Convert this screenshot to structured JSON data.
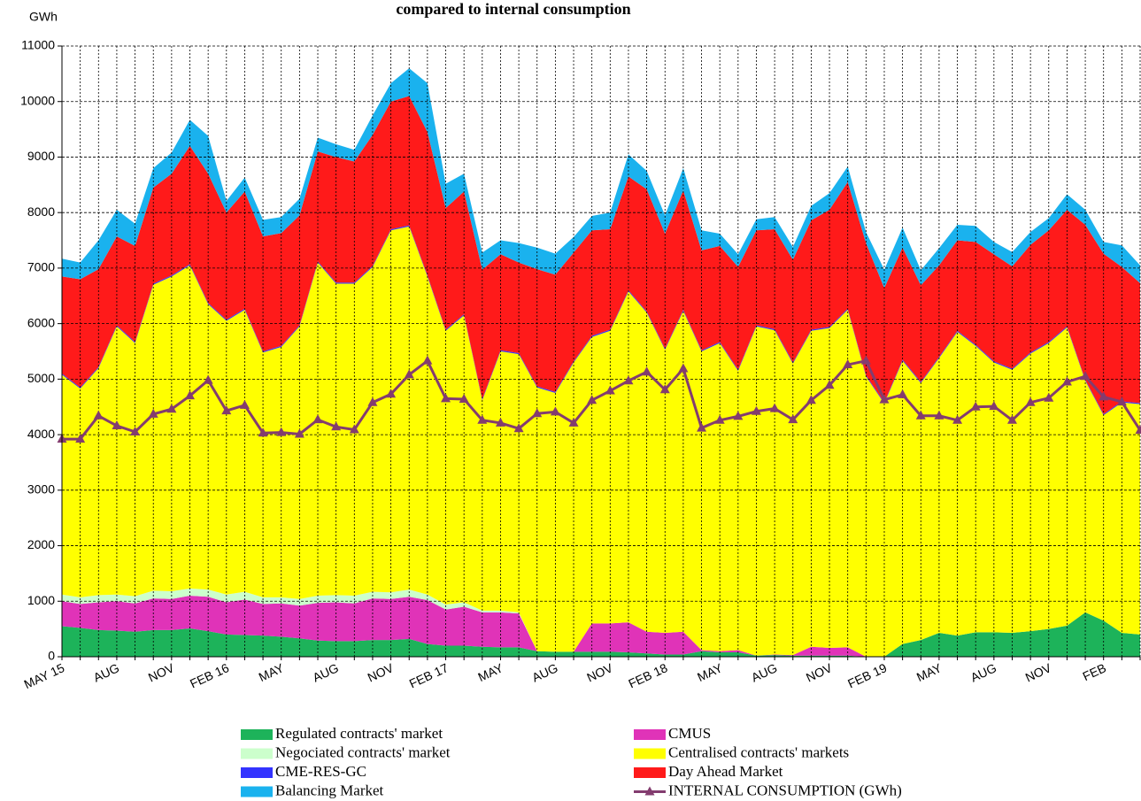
{
  "chart_data": {
    "type": "area",
    "title": "compared  to  internal  consumption",
    "y_label": "GWh",
    "categories": [
      "MAY 15",
      null,
      null,
      "AUG",
      null,
      null,
      "NOV",
      null,
      null,
      "FEB 16",
      null,
      null,
      "MAY",
      null,
      null,
      "AUG",
      null,
      null,
      "NOV",
      null,
      null,
      "FEB 17",
      null,
      null,
      "MAY",
      null,
      null,
      "AUG",
      null,
      null,
      "NOV",
      null,
      null,
      "FEB 18",
      null,
      null,
      "MAY",
      null,
      null,
      "AUG",
      null,
      null,
      "NOV",
      null,
      null,
      "FEB 19",
      null,
      null,
      "MAY",
      null,
      null,
      "AUG",
      null,
      null,
      "NOV",
      null,
      null,
      "FEB",
      null,
      null
    ],
    "ylim": [
      0,
      11000
    ],
    "yticks": [
      0,
      1000,
      2000,
      3000,
      4000,
      5000,
      6000,
      7000,
      8000,
      9000,
      10000,
      11000
    ],
    "grid": true,
    "stacked": true,
    "series": [
      {
        "name": "Regulated contracts' market",
        "type": "area",
        "color": "#1db35a",
        "values": [
          550,
          520,
          480,
          470,
          450,
          480,
          480,
          510,
          460,
          400,
          390,
          380,
          360,
          330,
          290,
          280,
          280,
          300,
          300,
          320,
          230,
          200,
          200,
          180,
          170,
          170,
          100,
          90,
          90,
          90,
          90,
          80,
          60,
          40,
          40,
          100,
          80,
          80,
          20,
          30,
          20,
          20,
          20,
          20,
          0,
          0,
          230,
          300,
          430,
          380,
          440,
          440,
          430,
          460,
          500,
          560,
          800,
          650,
          430,
          400
        ]
      },
      {
        "name": "CMUS",
        "type": "area",
        "color": "#e033b8",
        "values": [
          450,
          430,
          500,
          530,
          510,
          570,
          560,
          590,
          620,
          580,
          640,
          570,
          600,
          590,
          680,
          700,
          680,
          750,
          740,
          760,
          790,
          650,
          700,
          620,
          630,
          610,
          0,
          0,
          0,
          510,
          510,
          540,
          390,
          390,
          410,
          20,
          20,
          40,
          0,
          10,
          10,
          160,
          140,
          150,
          0,
          0,
          0,
          0,
          0,
          0,
          0,
          0,
          0,
          0,
          0,
          0,
          0,
          0,
          0,
          0
        ]
      },
      {
        "name": "Negociated contracts' market",
        "type": "area",
        "color": "#ccffcc",
        "values": [
          120,
          120,
          130,
          120,
          130,
          140,
          140,
          130,
          130,
          140,
          140,
          120,
          110,
          120,
          130,
          130,
          140,
          120,
          120,
          130,
          100,
          90,
          80,
          30,
          30,
          20,
          0,
          0,
          0,
          0,
          0,
          0,
          0,
          0,
          0,
          0,
          0,
          0,
          0,
          0,
          0,
          0,
          0,
          0,
          0,
          0,
          0,
          0,
          0,
          0,
          0,
          0,
          0,
          0,
          0,
          0,
          0,
          0,
          0,
          0
        ]
      },
      {
        "name": "Centralised contracts' markets",
        "type": "area",
        "color": "#ffff00",
        "values": [
          3960,
          3760,
          4090,
          4830,
          4560,
          5510,
          5670,
          5820,
          5140,
          4930,
          5080,
          4410,
          4510,
          4910,
          6000,
          5610,
          5620,
          5850,
          6520,
          6540,
          5730,
          4930,
          5170,
          3790,
          4670,
          4650,
          4750,
          4660,
          5210,
          5160,
          5270,
          5960,
          5750,
          5100,
          5780,
          5380,
          5550,
          5030,
          5930,
          5840,
          5250,
          5690,
          5760,
          6080,
          5050,
          4560,
          5100,
          4630,
          4950,
          5470,
          5160,
          4860,
          4740,
          5000,
          5150,
          5370,
          4170,
          3700,
          4150,
          4150
        ]
      },
      {
        "name": "CME-RES-GC",
        "type": "area",
        "color": "#3333ff",
        "values": [
          20,
          20,
          20,
          20,
          20,
          20,
          20,
          20,
          20,
          20,
          20,
          20,
          20,
          20,
          20,
          20,
          20,
          20,
          20,
          20,
          20,
          20,
          20,
          20,
          20,
          20,
          20,
          20,
          20,
          20,
          20,
          20,
          20,
          20,
          20,
          20,
          20,
          20,
          20,
          20,
          20,
          20,
          20,
          20,
          20,
          20,
          20,
          20,
          20,
          20,
          20,
          20,
          20,
          20,
          20,
          20,
          20,
          20,
          20,
          20
        ]
      },
      {
        "name": "Day Ahead Market",
        "type": "area",
        "color": "#ff1a1a",
        "values": [
          1750,
          1950,
          1760,
          1600,
          1730,
          1730,
          1830,
          2130,
          2330,
          1930,
          2110,
          2070,
          2030,
          1980,
          1980,
          2260,
          2180,
          2360,
          2300,
          2330,
          2580,
          2190,
          2210,
          2330,
          1730,
          1630,
          2110,
          2110,
          1960,
          1900,
          1810,
          2050,
          2200,
          2070,
          2150,
          1800,
          1730,
          1850,
          1710,
          1800,
          1850,
          1970,
          2110,
          2280,
          2380,
          2060,
          2020,
          1740,
          1650,
          1630,
          1850,
          1930,
          1840,
          1940,
          2010,
          2100,
          2790,
          2890,
          2420,
          2160
        ]
      },
      {
        "name": "Balancing Market",
        "type": "area",
        "color": "#1ab2ee",
        "values": [
          320,
          300,
          520,
          480,
          400,
          350,
          380,
          470,
          680,
          210,
          250,
          300,
          290,
          300,
          250,
          230,
          210,
          350,
          330,
          500,
          880,
          440,
          320,
          310,
          250,
          350,
          390,
          380,
          280,
          260,
          300,
          400,
          330,
          330,
          400,
          360,
          220,
          230,
          200,
          220,
          230,
          260,
          300,
          280,
          200,
          330,
          360,
          270,
          310,
          280,
          290,
          220,
          260,
          230,
          220,
          280,
          270,
          210,
          390,
          320
        ]
      },
      {
        "name": "INTERNAL CONSUMPTION (GWh)",
        "type": "line",
        "color": "#833c6f",
        "values": [
          3920,
          3920,
          4340,
          4160,
          4050,
          4370,
          4460,
          4700,
          4980,
          4430,
          4530,
          4030,
          4040,
          4010,
          4270,
          4140,
          4090,
          4580,
          4730,
          5080,
          5330,
          4650,
          4640,
          4260,
          4210,
          4110,
          4380,
          4410,
          4210,
          4620,
          4790,
          4970,
          5130,
          4810,
          5190,
          4120,
          4260,
          4330,
          4420,
          4470,
          4270,
          4620,
          4890,
          5260,
          5330,
          4630,
          4720,
          4340,
          4340,
          4260,
          4500,
          4510,
          4260,
          4580,
          4660,
          4950,
          5050,
          4680,
          4590,
          4080
        ]
      }
    ]
  }
}
